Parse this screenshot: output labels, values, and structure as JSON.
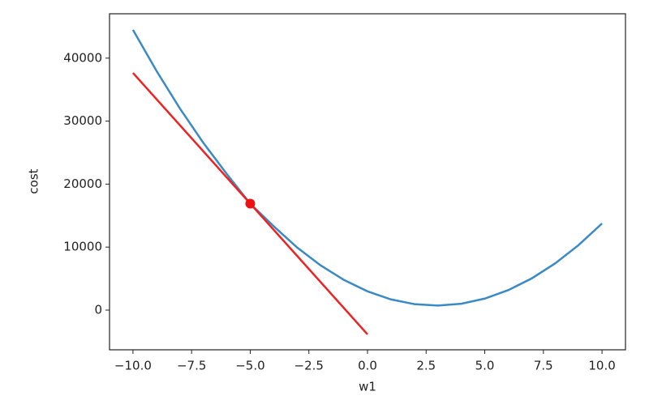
{
  "chart_data": {
    "type": "line",
    "x_label": "w1",
    "y_label": "cost",
    "series": [
      {
        "color": "#3a8ac6",
        "x": [
          -10,
          -9,
          -8,
          -7,
          -6,
          -5,
          -4,
          -3,
          -2,
          -1,
          0,
          1,
          2,
          3,
          4,
          5,
          6,
          7,
          8,
          9,
          10
        ],
        "values": [
          44480,
          37990,
          32010,
          26550,
          21610,
          16900,
          13310,
          9940,
          7100,
          4780,
          2980,
          1700,
          950,
          720,
          1010,
          1830,
          3170,
          5030,
          7410,
          10320,
          13750
        ]
      },
      {
        "color": "#ee2222",
        "x": [
          -10,
          0
        ],
        "values": [
          37650,
          -3850
        ]
      }
    ],
    "points": {
      "color": "#ee1111",
      "x": [
        -5
      ],
      "values": [
        16900
      ]
    },
    "xlim": [
      -11,
      11
    ],
    "ylim": [
      -6300,
      47040
    ],
    "xticks": [
      {
        "value": -10,
        "label": "−10.0"
      },
      {
        "value": -7.5,
        "label": "−7.5"
      },
      {
        "value": -5,
        "label": "−5.0"
      },
      {
        "value": -2.5,
        "label": "−2.5"
      },
      {
        "value": 0,
        "label": "0.0"
      },
      {
        "value": 2.5,
        "label": "2.5"
      },
      {
        "value": 5,
        "label": "5.0"
      },
      {
        "value": 7.5,
        "label": "7.5"
      },
      {
        "value": 10,
        "label": "10.0"
      }
    ],
    "yticks": [
      0,
      10000,
      20000,
      30000,
      40000
    ]
  }
}
